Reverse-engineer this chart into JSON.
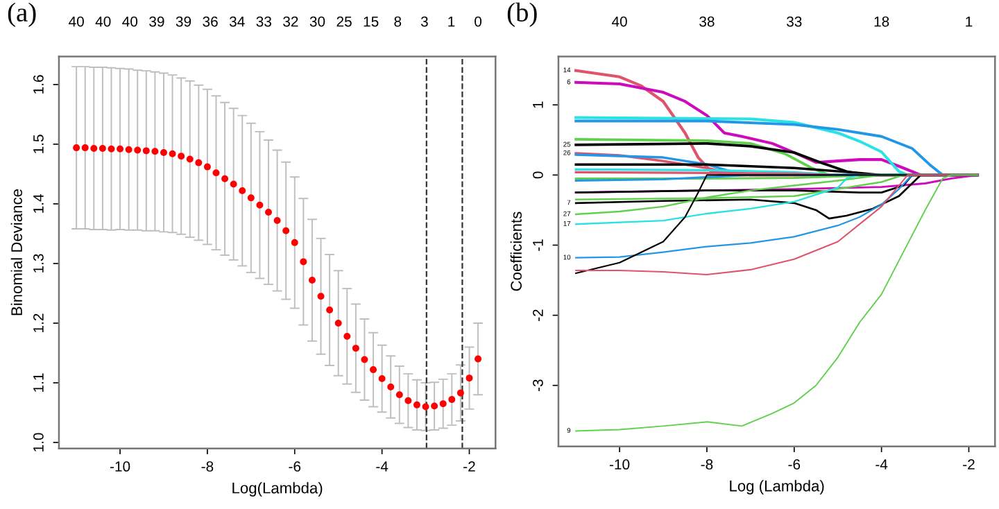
{
  "chart_data": [
    {
      "type": "scatter",
      "title": "(a)",
      "xlabel": "Log(Lambda)",
      "ylabel": "Binomial Deviance",
      "color": "#ff0000",
      "marker": "circle",
      "grid": false,
      "legend": false,
      "x": [
        -11,
        -10.8,
        -10.6,
        -10.4,
        -10.2,
        -10,
        -9.8,
        -9.6,
        -9.4,
        -9.2,
        -9,
        -8.8,
        -8.6,
        -8.4,
        -8.2,
        -8,
        -7.8,
        -7.6,
        -7.4,
        -7.2,
        -7,
        -6.8,
        -6.6,
        -6.4,
        -6.2,
        -6,
        -5.8,
        -5.6,
        -5.4,
        -5.2,
        -5,
        -4.8,
        -4.6,
        -4.4,
        -4.2,
        -4,
        -3.8,
        -3.6,
        -3.4,
        -3.2,
        -3,
        -2.8,
        -2.6,
        -2.4,
        -2.2,
        -2,
        -1.8
      ],
      "values": [
        1.494,
        1.494,
        1.493,
        1.493,
        1.492,
        1.492,
        1.491,
        1.49,
        1.489,
        1.488,
        1.486,
        1.484,
        1.48,
        1.475,
        1.469,
        1.462,
        1.452,
        1.442,
        1.433,
        1.422,
        1.41,
        1.398,
        1.386,
        1.372,
        1.355,
        1.335,
        1.303,
        1.272,
        1.245,
        1.222,
        1.2,
        1.178,
        1.158,
        1.139,
        1.122,
        1.107,
        1.093,
        1.08,
        1.07,
        1.063,
        1.06,
        1.061,
        1.065,
        1.072,
        1.083,
        1.108,
        1.14
      ],
      "errors": [
        0.136,
        0.136,
        0.136,
        0.136,
        0.136,
        0.135,
        0.135,
        0.134,
        0.134,
        0.133,
        0.133,
        0.132,
        0.131,
        0.131,
        0.13,
        0.13,
        0.129,
        0.128,
        0.127,
        0.126,
        0.125,
        0.123,
        0.121,
        0.118,
        0.115,
        0.11,
        0.106,
        0.102,
        0.097,
        0.093,
        0.088,
        0.08,
        0.074,
        0.068,
        0.062,
        0.056,
        0.052,
        0.048,
        0.045,
        0.042,
        0.04,
        0.04,
        0.041,
        0.043,
        0.047,
        0.052,
        0.06
      ],
      "xlim": [
        -11.4,
        -1.4
      ],
      "ylim": [
        0.99,
        1.647
      ],
      "xticks": [
        -10,
        -8,
        -6,
        -4,
        -2
      ],
      "yticks": [
        {
          "value": 1,
          "label": "1.0"
        },
        1.1,
        1.2,
        1.3,
        1.4,
        1.5,
        1.6
      ],
      "annotations": [
        "40",
        "40",
        "40",
        "39",
        "39",
        "36",
        "34",
        "33",
        "32",
        "30",
        "25",
        "15",
        "8",
        "3",
        "1",
        "0"
      ],
      "ref_lines": [
        {
          "axis": "x",
          "value": -2.98,
          "line_style": "dashed",
          "color": "#333333"
        },
        {
          "axis": "x",
          "value": -2.16,
          "line_style": "dashed",
          "color": "#333333"
        }
      ]
    },
    {
      "type": "line",
      "title": "(b)",
      "xlabel": "Log (Lambda)",
      "ylabel": "Coefficients",
      "grid": false,
      "legend": false,
      "marker": "none",
      "line_style": "solid",
      "xlim": [
        -11.4,
        -1.4
      ],
      "ylim": [
        -3.87,
        1.69
      ],
      "xticks": [
        -10,
        -8,
        -6,
        -4,
        -2
      ],
      "yticks": [
        -3,
        -2,
        -1,
        0,
        1
      ],
      "annotations": [
        "40",
        "38",
        "33",
        "18",
        "1"
      ],
      "series": [
        {
          "name": "14",
          "color": "#df536b",
          "x": [
            -11,
            -10,
            -9.5,
            -9,
            -8.5,
            -8.2,
            -7.9,
            -7.5,
            -1.8
          ],
          "values": [
            1.49,
            1.4,
            1.27,
            1.05,
            0.6,
            0.25,
            0.05,
            0,
            0
          ]
        },
        {
          "name": "6",
          "color": "#cd0bbc",
          "x": [
            -11,
            -10,
            -9,
            -8.5,
            -8,
            -7.6,
            -7.2,
            -6.5,
            -6,
            -5.5,
            -5,
            -4.5,
            -4,
            -3.5,
            -3.1,
            -1.8
          ],
          "values": [
            1.32,
            1.3,
            1.18,
            1.05,
            0.85,
            0.6,
            0.55,
            0.45,
            0.32,
            0.18,
            0.2,
            0.22,
            0.22,
            0.1,
            0,
            0
          ]
        },
        {
          "color": "#28e2e5",
          "x": [
            -11,
            -7,
            -6,
            -5,
            -4.5,
            -4,
            -3.6,
            -3.4,
            -1.8
          ],
          "values": [
            0.82,
            0.8,
            0.75,
            0.6,
            0.48,
            0.33,
            0.05,
            0,
            0
          ]
        },
        {
          "color": "#2297e6",
          "x": [
            -11,
            -8,
            -6,
            -5,
            -4,
            -3.3,
            -2.9,
            -2.6,
            -1.8
          ],
          "values": [
            0.77,
            0.77,
            0.72,
            0.65,
            0.55,
            0.38,
            0.15,
            0,
            0
          ]
        },
        {
          "color": "#61d04f",
          "x": [
            -11,
            -8,
            -7,
            -6.2,
            -5.6,
            -5.2,
            -1.8
          ],
          "values": [
            0.51,
            0.49,
            0.45,
            0.3,
            0.1,
            0,
            0
          ]
        },
        {
          "name": "25",
          "color": "#000000",
          "x": [
            -11,
            -8,
            -7,
            -6,
            -5.4,
            -4.8,
            -4.3,
            -1.8
          ],
          "values": [
            0.43,
            0.45,
            0.41,
            0.32,
            0.18,
            0.05,
            0,
            0
          ]
        },
        {
          "name": "26",
          "color": "#df536b",
          "x": [
            -11,
            -10,
            -9,
            -8,
            -7.5,
            -7,
            -1.8
          ],
          "values": [
            0.31,
            0.28,
            0.2,
            0.1,
            0.03,
            0,
            0
          ]
        },
        {
          "color": "#2297e6",
          "x": [
            -11,
            -9,
            -8,
            -7.5,
            -7,
            -1.8
          ],
          "values": [
            0.29,
            0.25,
            0.15,
            0.06,
            0.01,
            0
          ]
        },
        {
          "color": "#000000",
          "x": [
            -11,
            -8,
            -6,
            -4.5,
            -4,
            -1.8
          ],
          "values": [
            0.15,
            0.15,
            0.1,
            0.03,
            0,
            0
          ]
        },
        {
          "color": "#28e2e5",
          "x": [
            -11,
            -8,
            -6,
            -5,
            -1.8
          ],
          "values": [
            0.08,
            0.07,
            0.04,
            0,
            0
          ]
        },
        {
          "color": "#df536b",
          "x": [
            -11,
            -8,
            -6,
            -5,
            -1.8
          ],
          "values": [
            0.04,
            0.03,
            0.02,
            0,
            0
          ]
        },
        {
          "color": "#61d04f",
          "x": [
            -11,
            -8,
            -6,
            -4,
            -1.8
          ],
          "values": [
            -0.05,
            -0.05,
            -0.04,
            0,
            0
          ]
        },
        {
          "color": "#2297e6",
          "x": [
            -11,
            -9,
            -8,
            -7,
            -1.8
          ],
          "values": [
            -0.08,
            -0.06,
            -0.03,
            0,
            0
          ]
        },
        {
          "color": "#cd0bbc",
          "x": [
            -11,
            -8,
            -6,
            -4,
            -3,
            -2.4,
            -1.8
          ],
          "values": [
            -0.25,
            -0.22,
            -0.2,
            -0.17,
            -0.12,
            -0.05,
            0
          ]
        },
        {
          "color": "#000000",
          "x": [
            -11,
            -8,
            -6,
            -4.5,
            -4,
            -3.5,
            -3.3,
            -1.8
          ],
          "values": [
            -0.25,
            -0.22,
            -0.22,
            -0.25,
            -0.25,
            -0.15,
            0,
            0
          ]
        },
        {
          "name": "7",
          "color": "#000000",
          "x": [
            -11,
            -9,
            -7,
            -6,
            -5.5,
            -5.2,
            -4.8,
            -4.2,
            -3.6,
            -3.1,
            -1.8
          ],
          "values": [
            -0.4,
            -0.37,
            -0.35,
            -0.4,
            -0.5,
            -0.62,
            -0.58,
            -0.48,
            -0.3,
            0,
            0
          ]
        },
        {
          "color": "#61d04f",
          "x": [
            -11,
            -8,
            -6,
            -5,
            -4,
            -3.5,
            -1.8
          ],
          "values": [
            -0.35,
            -0.33,
            -0.3,
            -0.2,
            -0.1,
            0,
            0
          ]
        },
        {
          "name": "27",
          "color": "#61d04f",
          "x": [
            -11,
            -10,
            -9,
            -8,
            -7,
            -6,
            -5,
            -4,
            -1.8
          ],
          "values": [
            -0.56,
            -0.52,
            -0.45,
            -0.32,
            -0.22,
            -0.15,
            -0.08,
            0,
            0
          ]
        },
        {
          "name": "17",
          "color": "#28e2e5",
          "x": [
            -11,
            -9,
            -8,
            -7,
            -6,
            -5,
            -4.8,
            -4.5,
            -1.8
          ],
          "values": [
            -0.7,
            -0.65,
            -0.55,
            -0.48,
            -0.38,
            -0.18,
            -0.05,
            0,
            0
          ]
        },
        {
          "name": "10",
          "color": "#2297e6",
          "x": [
            -11,
            -10,
            -9,
            -8,
            -7,
            -6,
            -5,
            -4.5,
            -4,
            -3.6,
            -3.3,
            -1.8
          ],
          "values": [
            -1.18,
            -1.17,
            -1.1,
            -1.02,
            -0.97,
            -0.88,
            -0.72,
            -0.6,
            -0.42,
            -0.2,
            0,
            0
          ]
        },
        {
          "color": "#000000",
          "x": [
            -11,
            -10,
            -9,
            -8.5,
            -8.2,
            -8,
            -1.8
          ],
          "values": [
            -1.4,
            -1.25,
            -0.95,
            -0.6,
            -0.25,
            0,
            0
          ]
        },
        {
          "color": "#df536b",
          "x": [
            -11,
            -10,
            -9,
            -8,
            -7,
            -6,
            -5,
            -4.5,
            -4,
            -3.6,
            -3.4,
            -1.8
          ],
          "values": [
            -1.36,
            -1.36,
            -1.38,
            -1.42,
            -1.35,
            -1.2,
            -0.95,
            -0.7,
            -0.45,
            -0.15,
            0,
            0
          ]
        },
        {
          "name": "9",
          "color": "#61d04f",
          "x": [
            -11,
            -10,
            -9,
            -8,
            -7.2,
            -6.5,
            -6,
            -5.5,
            -5,
            -4.5,
            -4,
            -3.5,
            -3,
            -2.6,
            -2.4,
            -1.8
          ],
          "values": [
            -3.65,
            -3.63,
            -3.58,
            -3.52,
            -3.58,
            -3.4,
            -3.25,
            -3.0,
            -2.6,
            -2.1,
            -1.7,
            -1.1,
            -0.5,
            -0.05,
            0,
            0
          ]
        }
      ]
    }
  ]
}
